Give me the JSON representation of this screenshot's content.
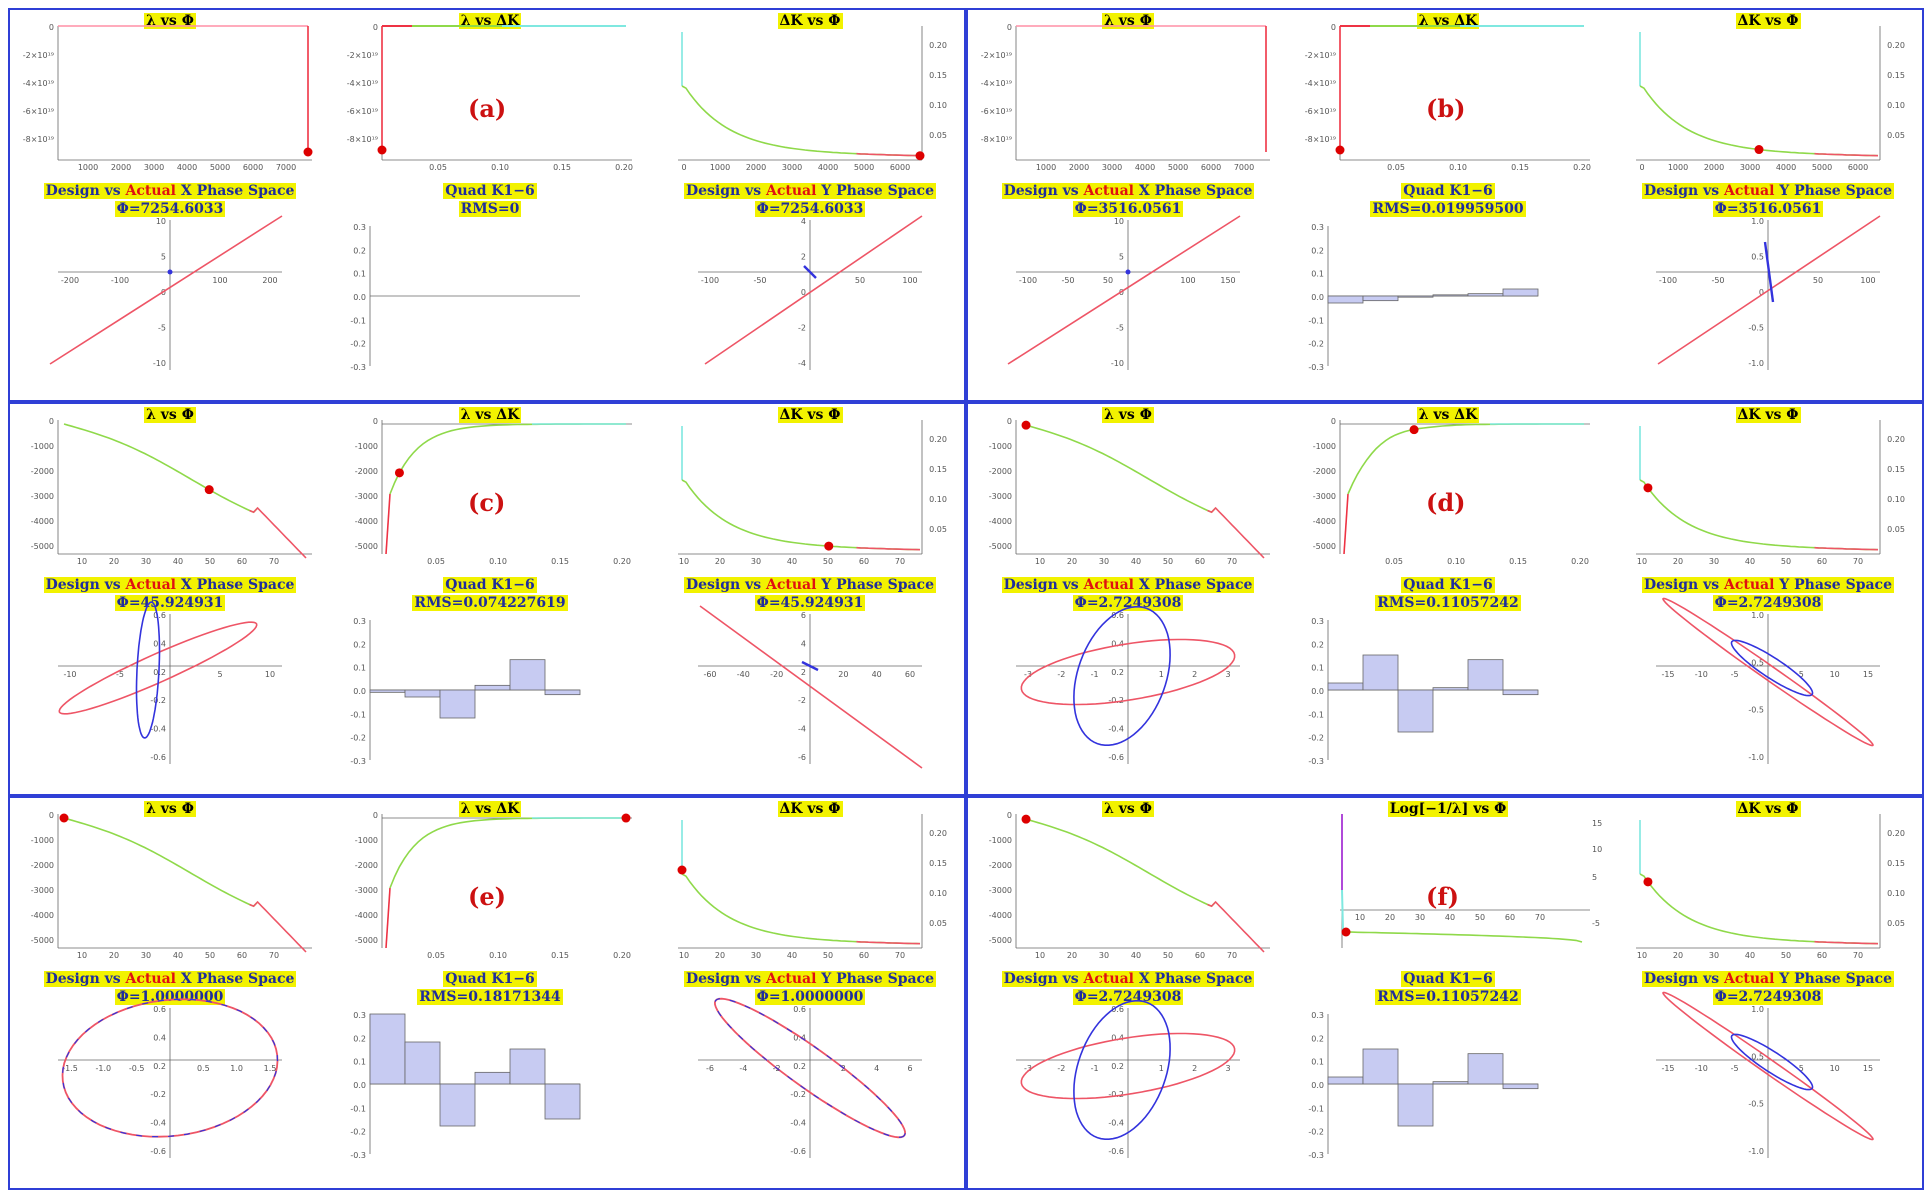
{
  "colors": {
    "border": "#2f3fd6",
    "design": "#ee5566",
    "actual": "#3333dd",
    "bar": "#c7cbf2",
    "marker": "#dd0000",
    "highlight": "#f2f200"
  },
  "panels": [
    {
      "id": "a",
      "label": "(a)",
      "lp": {
        "title": "λ vs Φ",
        "type": "flat",
        "yticks": [
          "-2×10^19",
          "-4×10^19",
          "-6×10^19",
          "-8×10^19"
        ],
        "xticks": [
          "1000",
          "2000",
          "3000",
          "4000",
          "5000",
          "6000",
          "7000"
        ],
        "ylabels": [
          "0",
          "-2×10¹⁹",
          "-4×10¹⁹",
          "-6×10¹⁹",
          "-8×10¹⁹"
        ],
        "marker": 1.0
      },
      "ld": {
        "title": "λ vs ΔK",
        "type": "flat",
        "ylabels": [
          "0",
          "-2×10¹⁹",
          "-4×10¹⁹",
          "-6×10¹⁹",
          "-8×10¹⁹"
        ],
        "xticks": [
          "0.05",
          "0.10",
          "0.15",
          "0.20"
        ],
        "marker": 0.0
      },
      "dp": {
        "title": "ΔK vs Φ",
        "xticks": [
          "0",
          "1000",
          "2000",
          "3000",
          "4000",
          "5000",
          "6000"
        ],
        "yticks": [
          "0.20",
          "0.15",
          "0.10",
          "0.05"
        ],
        "marker": 1.0
      },
      "px": {
        "title_a": "Design",
        "title_b": "vs",
        "title_c": "Actual",
        "title_d": "X Phase Space",
        "sub": "Φ=7254.6033",
        "xticks": [
          "-200",
          "-100",
          "100",
          "200"
        ],
        "yticks": [
          "10",
          "5",
          "0",
          "-5",
          "-10"
        ],
        "shape": "line-pos"
      },
      "bars": {
        "title": "Quad K1−6",
        "sub": "RMS=0",
        "values": [
          0,
          0,
          0,
          0,
          0,
          0
        ],
        "yticks": [
          "0.3",
          "0.2",
          "0.1",
          "0.0",
          "-0.1",
          "-0.2",
          "-0.3"
        ]
      },
      "py": {
        "title_a": "Design",
        "title_b": "vs",
        "title_c": "Actual",
        "title_d": "Y Phase Space",
        "sub": "Φ=7254.6033",
        "xticks": [
          "-100",
          "-50",
          "50",
          "100"
        ],
        "yticks": [
          "4",
          "2",
          "0",
          "-2",
          "-4"
        ],
        "shape": "line-pos-small"
      }
    },
    {
      "id": "b",
      "label": "(b)",
      "lp": {
        "title": "λ vs Φ",
        "type": "flat",
        "ylabels": [
          "0",
          "-2×10¹⁹",
          "-4×10¹⁹",
          "-6×10¹⁹",
          "-8×10¹⁹"
        ],
        "xticks": [
          "1000",
          "2000",
          "3000",
          "4000",
          "5000",
          "6000",
          "7000"
        ],
        "marker": -1
      },
      "ld": {
        "title": "λ vs ΔK",
        "type": "flat",
        "ylabels": [
          "0",
          "-2×10¹⁹",
          "-4×10¹⁹",
          "-6×10¹⁹",
          "-8×10¹⁹"
        ],
        "xticks": [
          "0.05",
          "0.10",
          "0.15",
          "0.20"
        ],
        "marker": 0.0
      },
      "dp": {
        "title": "ΔK vs Φ",
        "xticks": [
          "0",
          "1000",
          "2000",
          "3000",
          "4000",
          "5000",
          "6000"
        ],
        "yticks": [
          "0.20",
          "0.15",
          "0.10",
          "0.05"
        ],
        "marker": 0.5
      },
      "px": {
        "title_a": "Design",
        "title_b": "vs",
        "title_c": "Actual",
        "title_d": "X Phase Space",
        "sub": "Φ=3516.0561",
        "xticks": [
          "-100",
          "-50",
          "50",
          "100",
          "150"
        ],
        "yticks": [
          "10",
          "5",
          "0",
          "-5",
          "-10"
        ],
        "shape": "line-pos"
      },
      "bars": {
        "title": "Quad K1−6",
        "sub": "RMS=0.019959500",
        "values": [
          -0.03,
          -0.02,
          -0.005,
          0.005,
          0.01,
          0.03
        ],
        "yticks": [
          "0.3",
          "0.2",
          "0.1",
          "0.0",
          "-0.1",
          "-0.2",
          "-0.3"
        ]
      },
      "py": {
        "title_a": "Design",
        "title_b": "vs",
        "title_c": "Actual",
        "title_d": "Y Phase Space",
        "sub": "Φ=3516.0561",
        "xticks": [
          "-100",
          "-50",
          "50",
          "100"
        ],
        "yticks": [
          "1.0",
          "0.5",
          "0",
          "-0.5",
          "-1.0"
        ],
        "shape": "line-pos-tilt"
      }
    },
    {
      "id": "c",
      "label": "(c)",
      "lp": {
        "title": "λ vs Φ",
        "type": "curve",
        "ylabels": [
          "0",
          "-1000",
          "-2000",
          "-3000",
          "-4000",
          "-5000"
        ],
        "xticks": [
          "10",
          "20",
          "30",
          "40",
          "50",
          "60",
          "70"
        ],
        "marker": 0.6
      },
      "ld": {
        "title": "λ vs ΔK",
        "type": "rise",
        "ylabels": [
          "0",
          "-1000",
          "-2000",
          "-3000",
          "-4000",
          "-5000"
        ],
        "xticks": [
          "0.05",
          "0.10",
          "0.15",
          "0.20"
        ],
        "marker": 0.04
      },
      "dp": {
        "title": "ΔK vs Φ",
        "xticks": [
          "10",
          "20",
          "30",
          "40",
          "50",
          "60",
          "70"
        ],
        "yticks": [
          "0.20",
          "0.15",
          "0.10",
          "0.05"
        ],
        "marker": 0.62
      },
      "px": {
        "title_a": "Design",
        "title_b": "vs",
        "title_c": "Actual",
        "title_d": "X Phase Space",
        "sub": "Φ=45.924931",
        "xticks": [
          "-10",
          "-5",
          "5",
          "10"
        ],
        "yticks": [
          "0.6",
          "0.4",
          "0.2",
          "-0.2",
          "-0.4",
          "-0.6"
        ],
        "shape": "ellipse-c"
      },
      "bars": {
        "title": "Quad K1−6",
        "sub": "RMS=0.074227619",
        "values": [
          -0.01,
          -0.03,
          -0.12,
          0.02,
          0.13,
          -0.02
        ],
        "yticks": [
          "0.3",
          "0.2",
          "0.1",
          "0.0",
          "-0.1",
          "-0.2",
          "-0.3"
        ]
      },
      "py": {
        "title_a": "Design",
        "title_b": "vs",
        "title_c": "Actual",
        "title_d": "Y Phase Space",
        "sub": "Φ=45.924931",
        "xticks": [
          "-60",
          "-40",
          "-20",
          "20",
          "40",
          "60"
        ],
        "yticks": [
          "6",
          "4",
          "2",
          "-2",
          "-4",
          "-6"
        ],
        "shape": "line-neg"
      }
    },
    {
      "id": "d",
      "label": "(d)",
      "lp": {
        "title": "λ vs Φ",
        "type": "curve",
        "ylabels": [
          "0",
          "-1000",
          "-2000",
          "-3000",
          "-4000",
          "-5000"
        ],
        "xticks": [
          "10",
          "20",
          "30",
          "40",
          "50",
          "60",
          "70"
        ],
        "marker": 0.02
      },
      "ld": {
        "title": "λ vs ΔK",
        "type": "rise2",
        "ylabels": [
          "0",
          "-1000",
          "-2000",
          "-3000",
          "-4000",
          "-5000"
        ],
        "xticks": [
          "0.05",
          "0.10",
          "0.15",
          "0.20"
        ],
        "marker": 0.28
      },
      "dp": {
        "title": "ΔK vs Φ",
        "xticks": [
          "10",
          "20",
          "30",
          "40",
          "50",
          "60",
          "70"
        ],
        "yticks": [
          "0.20",
          "0.15",
          "0.10",
          "0.05"
        ],
        "marker": 0.03
      },
      "px": {
        "title_a": "Design",
        "title_b": "vs",
        "title_c": "Actual",
        "title_d": "X Phase Space",
        "sub": "Φ=2.7249308",
        "xticks": [
          "-3",
          "-2",
          "-1",
          "1",
          "2",
          "3"
        ],
        "yticks": [
          "0.6",
          "0.4",
          "0.2",
          "-0.2",
          "-0.4",
          "-0.6"
        ],
        "shape": "ellipse-d"
      },
      "bars": {
        "title": "Quad K1−6",
        "sub": "RMS=0.11057242",
        "values": [
          0.03,
          0.15,
          -0.18,
          0.01,
          0.13,
          -0.02
        ],
        "yticks": [
          "0.3",
          "0.2",
          "0.1",
          "0.0",
          "-0.1",
          "-0.2",
          "-0.3"
        ]
      },
      "py": {
        "title_a": "Design",
        "title_b": "vs",
        "title_c": "Actual",
        "title_d": "Y Phase Space",
        "sub": "Φ=2.7249308",
        "xticks": [
          "-15",
          "-10",
          "-5",
          "5",
          "10",
          "15"
        ],
        "yticks": [
          "1.0",
          "0.5",
          "-0.5",
          "-1.0"
        ],
        "shape": "ellipse-dy"
      }
    },
    {
      "id": "e",
      "label": "(e)",
      "lp": {
        "title": "λ vs Φ",
        "type": "curve",
        "ylabels": [
          "0",
          "-1000",
          "-2000",
          "-3000",
          "-4000",
          "-5000"
        ],
        "xticks": [
          "10",
          "20",
          "30",
          "40",
          "50",
          "60",
          "70"
        ],
        "marker": 0.0
      },
      "ld": {
        "title": "λ vs ΔK",
        "type": "rise",
        "ylabels": [
          "0",
          "-1000",
          "-2000",
          "-3000",
          "-4000",
          "-5000"
        ],
        "xticks": [
          "0.05",
          "0.10",
          "0.15",
          "0.20"
        ],
        "marker": 1.0
      },
      "dp": {
        "title": "ΔK vs Φ",
        "xticks": [
          "10",
          "20",
          "30",
          "40",
          "50",
          "60",
          "70"
        ],
        "yticks": [
          "0.20",
          "0.15",
          "0.10",
          "0.05"
        ],
        "marker": 0.0
      },
      "px": {
        "title_a": "Design",
        "title_b": "vs",
        "title_c": "Actual",
        "title_d": "X Phase Space",
        "sub": "Φ=1.0000000",
        "xticks": [
          "-1.5",
          "-1.0",
          "-0.5",
          "0.5",
          "1.0",
          "1.5"
        ],
        "yticks": [
          "0.6",
          "0.4",
          "0.2",
          "-0.2",
          "-0.4",
          "-0.6"
        ],
        "shape": "ellipse-e"
      },
      "bars": {
        "title": "Quad K1−6",
        "sub": "RMS=0.18171344",
        "values": [
          0.3,
          0.18,
          -0.18,
          0.05,
          0.15,
          -0.15
        ],
        "yticks": [
          "0.3",
          "0.2",
          "0.1",
          "0.0",
          "-0.1",
          "-0.2",
          "-0.3"
        ]
      },
      "py": {
        "title_a": "Design",
        "title_b": "vs",
        "title_c": "Actual",
        "title_d": "Y Phase Space",
        "sub": "Φ=1.0000000",
        "xticks": [
          "-6",
          "-4",
          "-2",
          "2",
          "4",
          "6"
        ],
        "yticks": [
          "0.6",
          "0.4",
          "0.2",
          "-0.2",
          "-0.4",
          "-0.6"
        ],
        "shape": "ellipse-ey"
      }
    },
    {
      "id": "f",
      "label": "(f)",
      "lp": {
        "title": "λ vs Φ",
        "type": "curve",
        "ylabels": [
          "0",
          "-1000",
          "-2000",
          "-3000",
          "-4000",
          "-5000"
        ],
        "xticks": [
          "10",
          "20",
          "30",
          "40",
          "50",
          "60",
          "70"
        ],
        "marker": 0.02
      },
      "ld": {
        "title": "Log[−1/λ] vs Φ",
        "type": "log",
        "ylabels": [
          "15",
          "10",
          "5",
          "-5"
        ],
        "xticks": [
          "10",
          "20",
          "30",
          "40",
          "50",
          "60",
          "70"
        ],
        "marker": 0.02
      },
      "dp": {
        "title": "ΔK vs Φ",
        "xticks": [
          "10",
          "20",
          "30",
          "40",
          "50",
          "60",
          "70"
        ],
        "yticks": [
          "0.20",
          "0.15",
          "0.10",
          "0.05"
        ],
        "marker": 0.03
      },
      "px": {
        "title_a": "Design",
        "title_b": "vs",
        "title_c": "Actual",
        "title_d": "X Phase Space",
        "sub": "Φ=2.7249308",
        "xticks": [
          "-3",
          "-2",
          "-1",
          "1",
          "2",
          "3"
        ],
        "yticks": [
          "0.6",
          "0.4",
          "0.2",
          "-0.2",
          "-0.4",
          "-0.6"
        ],
        "shape": "ellipse-d"
      },
      "bars": {
        "title": "Quad K1−6",
        "sub": "RMS=0.11057242",
        "values": [
          0.03,
          0.15,
          -0.18,
          0.01,
          0.13,
          -0.02
        ],
        "yticks": [
          "0.3",
          "0.2",
          "0.1",
          "0.0",
          "-0.1",
          "-0.2",
          "-0.3"
        ]
      },
      "py": {
        "title_a": "Design",
        "title_b": "vs",
        "title_c": "Actual",
        "title_d": "Y Phase Space",
        "sub": "Φ=2.7249308",
        "xticks": [
          "-15",
          "-10",
          "-5",
          "5",
          "10",
          "15"
        ],
        "yticks": [
          "1.0",
          "0.5",
          "-0.5",
          "-1.0"
        ],
        "shape": "ellipse-dy"
      }
    }
  ]
}
